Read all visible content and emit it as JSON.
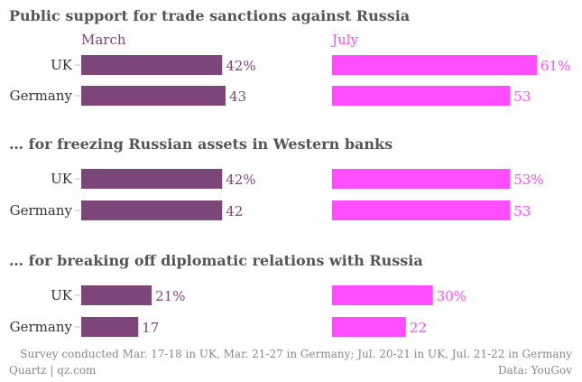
{
  "chart_data": {
    "type": "bar",
    "columns": [
      "March",
      "July"
    ],
    "colors": {
      "March": "#7d4678",
      "July": "#ff4dff"
    },
    "xlim": [
      0,
      70
    ],
    "panels": [
      {
        "title": "Public support for trade sanctions against Russia",
        "categories": [
          "UK",
          "Germany"
        ],
        "series": [
          {
            "name": "March",
            "values": [
              42,
              43
            ],
            "labels": [
              "42%",
              "43"
            ]
          },
          {
            "name": "July",
            "values": [
              61,
              53
            ],
            "labels": [
              "61%",
              "53"
            ]
          }
        ]
      },
      {
        "title": "… for freezing Russian assets in Western banks",
        "categories": [
          "UK",
          "Germany"
        ],
        "series": [
          {
            "name": "March",
            "values": [
              42,
              42
            ],
            "labels": [
              "42%",
              "42"
            ]
          },
          {
            "name": "July",
            "values": [
              53,
              53
            ],
            "labels": [
              "53%",
              "53"
            ]
          }
        ]
      },
      {
        "title": "… for breaking off diplomatic relations with Russia",
        "categories": [
          "UK",
          "Germany"
        ],
        "series": [
          {
            "name": "March",
            "values": [
              21,
              17
            ],
            "labels": [
              "21%",
              "17"
            ]
          },
          {
            "name": "July",
            "values": [
              30,
              22
            ],
            "labels": [
              "30%",
              "22"
            ]
          }
        ]
      }
    ],
    "footnote": "Survey conducted Mar. 17-18 in UK, Mar. 21-27 in Germany; Jul. 20-21 in UK, Jul. 21-22 in Germany",
    "credit": "Quartz | qz.com",
    "source": "Data: YouGov"
  }
}
